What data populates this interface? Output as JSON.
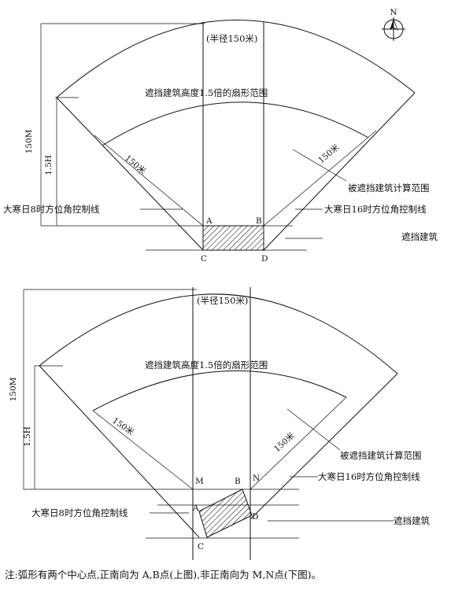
{
  "compass": {
    "label": "N"
  },
  "top": {
    "radius_label": "(半径150米)",
    "sector_label": "遮挡建筑高度1.5倍的扇形范围",
    "dim_150m": "150M",
    "dim_15h": "1.5H",
    "r150_left": "150米",
    "r150_right": "150米",
    "calc_range": "被遮挡建筑计算范围",
    "line_8": "大寒日8时方位角控制线",
    "line_16": "大寒日16时方位角控制线",
    "building": "遮挡建筑",
    "points": {
      "A": "A",
      "B": "B",
      "C": "C",
      "D": "D"
    }
  },
  "bottom": {
    "radius_label": "(半径150米)",
    "sector_label": "遮挡建筑高度1.5倍的扇形范围",
    "dim_150m": "150M",
    "dim_15h": "1.5H",
    "r150_left": "150米",
    "r150_right": "150米",
    "calc_range": "被遮挡建筑计算范围",
    "line_16": "大寒日16时方位角控制线",
    "line_8": "大寒日8时方位角控制线",
    "building": "遮挡建筑",
    "points": {
      "M": "M",
      "N": "N",
      "A": "A",
      "B": "B",
      "C": "C",
      "D": "D"
    }
  },
  "note": "注:弧形有两个中心点,正南向为 A,B点(上图),非正南向为 M,N点(下图)。"
}
